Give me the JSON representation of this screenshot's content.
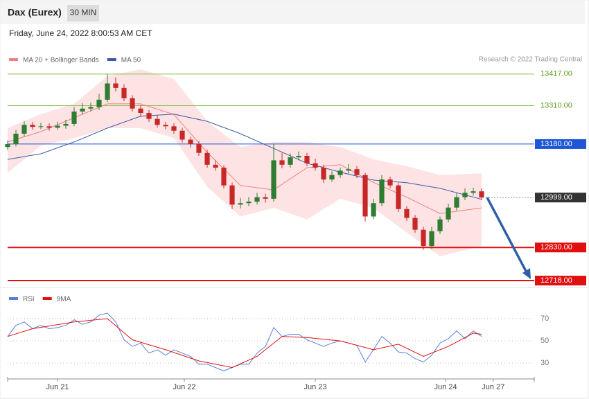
{
  "header": {
    "title": "Dax (Eurex)",
    "interval": "30 MIN",
    "timestamp": "Friday, June 24, 2022 8:00:53 AM CET",
    "credit": "Research © 2022 Trading Central"
  },
  "chart_data": [
    {
      "type": "candlestick",
      "open": [
        13170,
        13180,
        13215,
        13245,
        13238,
        13240,
        13235,
        13242,
        13248,
        13290,
        13300,
        13305,
        13330,
        13385,
        13370,
        13335,
        13300,
        13285,
        13265,
        13245,
        13240,
        13225,
        13195,
        13180,
        13150,
        13110,
        13100,
        13040,
        12975,
        12980,
        12985,
        13000,
        12995,
        13125,
        13110,
        13135,
        13140,
        13115,
        13100,
        13060,
        13075,
        13090,
        13095,
        13075,
        12935,
        12980,
        13060,
        13040,
        12960,
        12930,
        12890,
        12835,
        12885,
        12925,
        12965,
        13000,
        13015,
        13020
      ],
      "high": [
        13192,
        13228,
        13258,
        13255,
        13252,
        13250,
        13255,
        13262,
        13305,
        13318,
        13320,
        13350,
        13417,
        13405,
        13382,
        13345,
        13312,
        13295,
        13278,
        13255,
        13250,
        13235,
        13205,
        13190,
        13160,
        13125,
        13108,
        13050,
        12998,
        13000,
        13015,
        13012,
        13180,
        13150,
        13148,
        13155,
        13150,
        13130,
        13110,
        13088,
        13100,
        13112,
        13105,
        13082,
        12995,
        13075,
        13070,
        13048,
        12970,
        12940,
        12900,
        12900,
        12935,
        12978,
        13015,
        13030,
        13032,
        13030
      ],
      "low": [
        13160,
        13172,
        13205,
        13228,
        13230,
        13225,
        13228,
        13232,
        13240,
        13280,
        13290,
        13295,
        13322,
        13358,
        13325,
        13290,
        13272,
        13255,
        13235,
        13230,
        13215,
        13185,
        13168,
        13140,
        13100,
        13090,
        13030,
        12960,
        12962,
        12970,
        12975,
        12982,
        12985,
        13098,
        13100,
        13125,
        13105,
        13090,
        13048,
        13052,
        13065,
        13080,
        13065,
        12918,
        12925,
        12970,
        13030,
        12950,
        12920,
        12880,
        12822,
        12825,
        12875,
        12915,
        12955,
        12990,
        13005,
        12990
      ],
      "close": [
        13180,
        13215,
        13245,
        13238,
        13240,
        13235,
        13242,
        13248,
        13290,
        13300,
        13305,
        13330,
        13385,
        13370,
        13335,
        13300,
        13285,
        13265,
        13245,
        13240,
        13225,
        13195,
        13180,
        13150,
        13110,
        13100,
        13040,
        12975,
        12980,
        12985,
        13000,
        12995,
        13125,
        13110,
        13135,
        13140,
        13115,
        13100,
        13060,
        13075,
        13090,
        13095,
        13075,
        12935,
        12980,
        13060,
        13040,
        12960,
        12930,
        12890,
        12835,
        12885,
        12925,
        12965,
        13000,
        13015,
        13020,
        12999
      ],
      "up_color": "#2e7d32",
      "down_color": "#c62828",
      "series": [
        {
          "name": "MA 20 + Bollinger Bands",
          "color": "#f08080",
          "band_color": "#fde3e3",
          "x": [
            0,
            4,
            8,
            12,
            16,
            20,
            24,
            28,
            32,
            36,
            40,
            44,
            48,
            52,
            57
          ],
          "values": [
            13187,
            13222,
            13269,
            13316,
            13316,
            13280,
            13152,
            13040,
            13025,
            13100,
            13110,
            13050,
            13000,
            12945,
            12964
          ],
          "upper": [
            13234,
            13281,
            13316,
            13410,
            13433,
            13400,
            13257,
            13170,
            13187,
            13187,
            13170,
            13128,
            13105,
            13075,
            13081
          ],
          "lower": [
            13082,
            13175,
            13199,
            13234,
            13234,
            13200,
            13035,
            12935,
            12964,
            12925,
            12995,
            12964,
            12880,
            12800,
            12835
          ]
        },
        {
          "name": "MA 50",
          "color": "#3a5ba8",
          "x": [
            0,
            4,
            8,
            12,
            16,
            20,
            24,
            28,
            32,
            36,
            40,
            44,
            48,
            52,
            57
          ],
          "values": [
            13128,
            13147,
            13187,
            13234,
            13274,
            13281,
            13257,
            13215,
            13165,
            13115,
            13085,
            13058,
            13049,
            13030,
            12993
          ]
        }
      ],
      "levels": [
        {
          "value": 13417,
          "label": "13417.00",
          "color": "#8bc34a",
          "style": "text"
        },
        {
          "value": 13310,
          "label": "13310.00",
          "color": "#8bc34a",
          "style": "text"
        },
        {
          "value": 13180,
          "label": "13180.00",
          "color": "#1e56d6",
          "style": "box"
        },
        {
          "value": 12999,
          "label": "12999.00",
          "color": "#333333",
          "style": "dotted"
        },
        {
          "value": 12830,
          "label": "12830.00",
          "color": "#e01010",
          "style": "box"
        },
        {
          "value": 12718,
          "label": "12718.00",
          "color": "#e01010",
          "style": "box"
        }
      ],
      "xlim": [
        0,
        63.333
      ],
      "ylim": [
        12690,
        13440
      ]
    },
    {
      "type": "line",
      "series": [
        {
          "name": "RSI",
          "color": "#5b7fd6",
          "values": [
            54,
            64,
            67,
            61,
            64,
            61,
            62,
            64,
            69,
            65,
            67,
            73,
            75,
            67,
            51,
            45,
            48,
            39,
            42,
            37,
            42,
            39,
            36,
            29,
            29,
            26,
            23,
            26,
            29,
            29,
            39,
            45,
            62,
            54,
            56,
            56,
            51,
            48,
            45,
            48,
            50,
            48,
            46,
            31,
            42,
            54,
            48,
            40,
            39,
            34,
            31,
            37,
            48,
            52,
            59,
            52,
            59,
            54
          ]
        },
        {
          "name": "9MA",
          "color": "#e01010",
          "x": [
            0,
            3,
            8,
            12,
            15,
            19,
            23,
            27,
            30,
            33,
            36,
            40,
            44,
            47,
            50,
            53,
            56,
            57
          ],
          "values": [
            54,
            61,
            67,
            70,
            51,
            42,
            32,
            26,
            36,
            54,
            53,
            50,
            42,
            47,
            36,
            45,
            57,
            56
          ]
        }
      ],
      "ylim": [
        17,
        82.5
      ],
      "yticks": [
        30,
        50,
        70
      ],
      "grid": true,
      "xlim": [
        0,
        63.333
      ],
      "xticks": [
        {
          "value": 6,
          "label": "Jun 21"
        },
        {
          "value": 21.25,
          "label": "Jun 22"
        },
        {
          "value": 37,
          "label": "Jun 23"
        },
        {
          "value": 52.67,
          "label": "Jun 24"
        },
        {
          "value": 58.4,
          "label": "Jun 27"
        }
      ]
    }
  ]
}
